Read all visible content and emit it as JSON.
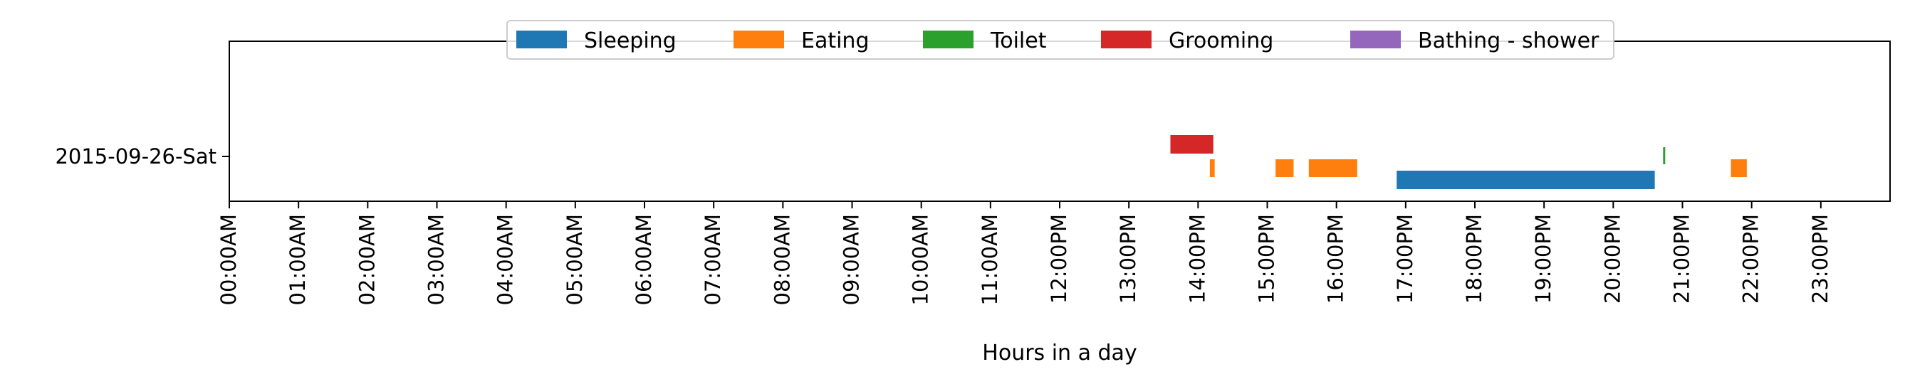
{
  "chart_data": {
    "type": "timeline",
    "title": "",
    "xlabel": "Hours in a day",
    "ylabel": "",
    "xlim": [
      0,
      24
    ],
    "y_categories": [
      "2015-09-26-Sat"
    ],
    "x_tick_labels": [
      "00:00AM",
      "01:00AM",
      "02:00AM",
      "03:00AM",
      "04:00AM",
      "05:00AM",
      "06:00AM",
      "07:00AM",
      "08:00AM",
      "09:00AM",
      "10:00AM",
      "11:00AM",
      "12:00PM",
      "13:00PM",
      "14:00PM",
      "15:00PM",
      "16:00PM",
      "17:00PM",
      "18:00PM",
      "19:00PM",
      "20:00PM",
      "21:00PM",
      "22:00PM",
      "23:00PM"
    ],
    "legend_position": "top-center",
    "grid": false,
    "series": [
      {
        "name": "Sleeping",
        "color": "#1f77b4",
        "intervals": [
          {
            "start": 16.87,
            "end": 20.6
          }
        ]
      },
      {
        "name": "Eating",
        "color": "#ff7f0e",
        "intervals": [
          {
            "start": 14.17,
            "end": 14.24
          },
          {
            "start": 15.12,
            "end": 15.38
          },
          {
            "start": 15.6,
            "end": 16.3
          },
          {
            "start": 21.7,
            "end": 21.93
          }
        ]
      },
      {
        "name": "Toilet",
        "color": "#2ca02c",
        "intervals": [
          {
            "start": 20.72,
            "end": 20.75
          }
        ]
      },
      {
        "name": "Grooming",
        "color": "#d62728",
        "intervals": [
          {
            "start": 13.6,
            "end": 14.22
          }
        ]
      },
      {
        "name": "Bathing - shower",
        "color": "#9467bd",
        "intervals": []
      }
    ]
  }
}
